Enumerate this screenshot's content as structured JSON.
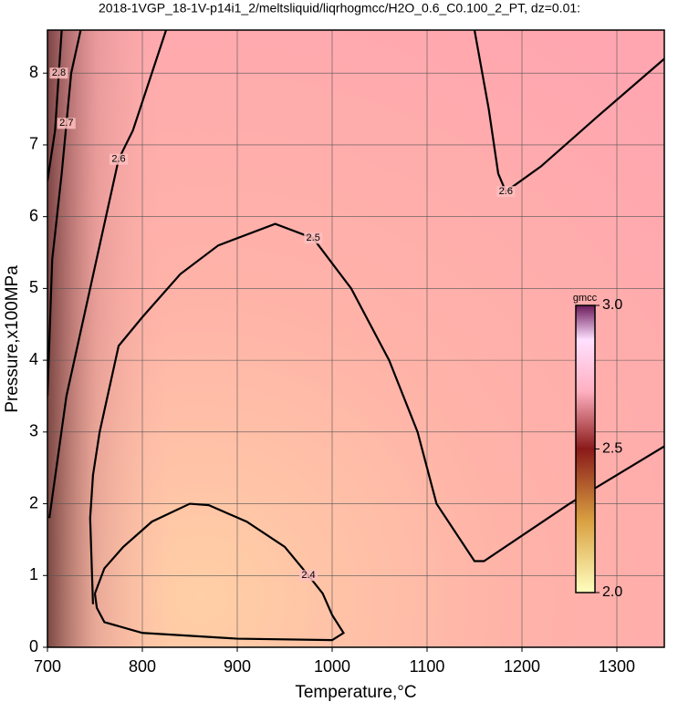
{
  "chart_data": {
    "type": "contour",
    "title": "2018-1VGP_18-1V-p14i1_2/meltsliquid/liqrhogmcc/H2O_0.6_C0.100_2_PT, dz=0.01:",
    "x_label": "Temperature,°C",
    "y_label": "Pressure,x100MPa",
    "xlim": [
      700,
      1350
    ],
    "ylim": [
      0,
      8.6
    ],
    "xticks": [
      700,
      800,
      900,
      1000,
      1100,
      1200,
      1300
    ],
    "yticks": [
      0,
      1,
      2,
      3,
      4,
      5,
      6,
      7,
      8
    ],
    "grid": true,
    "line_color": "#000000",
    "contours": [
      {
        "level": 2.4,
        "x": [
          750,
          752,
          760,
          800,
          900,
          1000,
          1012,
          1000,
          990,
          975,
          950,
          910,
          870,
          850,
          810,
          780,
          760,
          750
        ],
        "y": [
          0.75,
          0.55,
          0.35,
          0.2,
          0.12,
          0.1,
          0.2,
          0.45,
          0.75,
          1.0,
          1.4,
          1.75,
          1.98,
          2.0,
          1.75,
          1.4,
          1.1,
          0.75
        ]
      },
      {
        "level": 2.5,
        "x": [
          748,
          745,
          748,
          755,
          775,
          800,
          840,
          880,
          940,
          980,
          1020,
          1060,
          1090,
          1110,
          1150,
          1160,
          1250,
          1350
        ],
        "y": [
          0.6,
          1.8,
          2.4,
          3.0,
          4.2,
          4.6,
          5.2,
          5.6,
          5.9,
          5.7,
          5.0,
          4.0,
          3.0,
          2.0,
          1.2,
          1.2,
          2.0,
          2.8
        ]
      },
      {
        "level": 2.6,
        "x": [
          702,
          720,
          745,
          775,
          790,
          810,
          825
        ],
        "y": [
          1.8,
          3.5,
          5.0,
          6.8,
          7.2,
          8.0,
          8.6
        ]
      },
      {
        "level": 2.6,
        "x": [
          1150,
          1165,
          1175,
          1183,
          1220,
          1280,
          1350
        ],
        "y": [
          8.6,
          7.5,
          6.6,
          6.35,
          6.7,
          7.4,
          8.2
        ]
      },
      {
        "level": 2.7,
        "x": [
          700,
          705,
          715,
          720,
          725,
          735
        ],
        "y": [
          3.5,
          5.4,
          6.6,
          7.3,
          8.0,
          8.6
        ]
      },
      {
        "level": 2.8,
        "x": [
          700,
          708,
          712,
          715
        ],
        "y": [
          6.5,
          7.2,
          8.0,
          8.6
        ]
      }
    ],
    "colorbar": {
      "label": "gmcc",
      "zlim": [
        2.0,
        3.0
      ],
      "ticks": [
        {
          "value": 2.0,
          "label": "2.0"
        },
        {
          "value": 2.5,
          "label": "2.5"
        },
        {
          "value": 3.0,
          "label": "3.0"
        }
      ]
    }
  }
}
